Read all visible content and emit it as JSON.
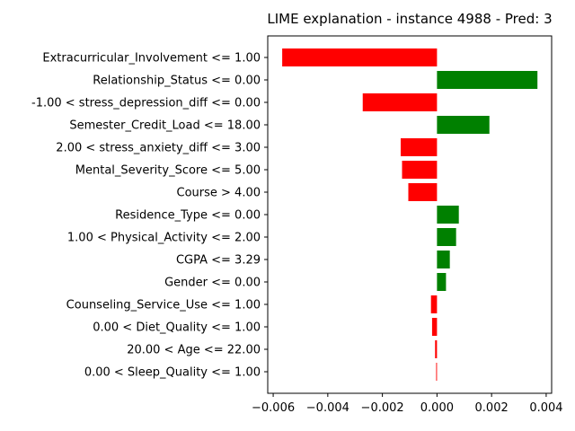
{
  "chart_data": {
    "type": "bar",
    "orientation": "horizontal",
    "title": "LIME explanation - instance 4988 - Pred: 3",
    "xlabel": "",
    "ylabel": "",
    "xlim": [
      -0.0062,
      0.0042
    ],
    "xticks": [
      -0.006,
      -0.004,
      -0.002,
      0.0,
      0.002,
      0.004
    ],
    "xtick_labels": [
      "−0.006",
      "−0.004",
      "−0.002",
      "0.000",
      "0.002",
      "0.004"
    ],
    "positive_color": "#008000",
    "negative_color": "#ff0000",
    "grid": false,
    "categories": [
      "Extracurricular_Involvement <= 1.00",
      "Relationship_Status <= 0.00",
      "-1.00 < stress_depression_diff <= 0.00",
      "Semester_Credit_Load <= 18.00",
      "2.00 < stress_anxiety_diff <= 3.00",
      "Mental_Severity_Score <= 5.00",
      "Course > 4.00",
      "Residence_Type <= 0.00",
      "1.00 < Physical_Activity <= 2.00",
      "CGPA <= 3.29",
      "Gender <= 0.00",
      "Counseling_Service_Use <= 1.00",
      "0.00 < Diet_Quality <= 1.00",
      "20.00 < Age <= 22.00",
      "0.00 < Sleep_Quality <= 1.00"
    ],
    "values": [
      -0.00567,
      0.00368,
      -0.00272,
      0.00192,
      -0.00133,
      -0.00128,
      -0.00105,
      0.0008,
      0.0007,
      0.00047,
      0.00033,
      -0.00022,
      -0.00018,
      -7e-05,
      -3e-05
    ]
  }
}
